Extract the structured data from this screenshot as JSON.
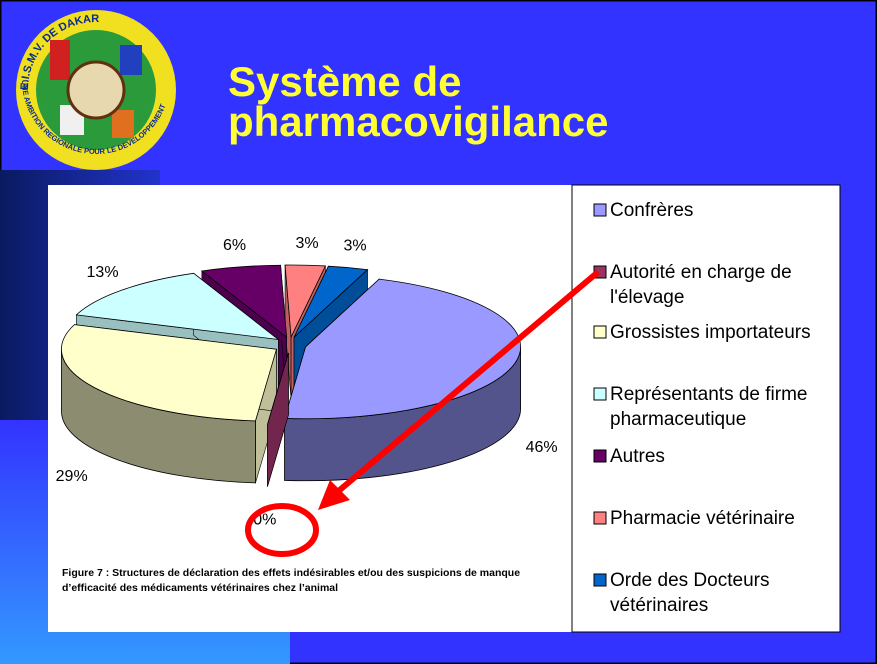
{
  "title": "Système de pharmacovigilance",
  "logo": {
    "top_text": "E.I.S.M.V. DE DAKAR",
    "bottom_text": "UNE AMBITION REGIONALE POUR LE DEVELOPPEMENT"
  },
  "chart_data": {
    "type": "pie3d",
    "categories": [
      "Confrères",
      "Autorité en charge de l'élevage",
      "Grossistes importateurs",
      "Représentants de firme pharmaceutique",
      "Autres",
      "Pharmacie vétérinaire",
      "Orde des Docteurs vétérinaires"
    ],
    "values": [
      46,
      0,
      29,
      13,
      6,
      3,
      3
    ],
    "value_labels": [
      "46%",
      "0%",
      "29%",
      "13%",
      "6%",
      "3%",
      "3%"
    ],
    "colors": [
      "#9999ff",
      "#993366",
      "#ffffcc",
      "#ccffff",
      "#660066",
      "#ff8080",
      "#0066cc"
    ],
    "caption": "Figure 7 : Structures de déclaration des effets indésirables et/ou des suspicions de manque d’efficacité des médicaments vétérinaires chez l’animal",
    "legend": "right"
  }
}
